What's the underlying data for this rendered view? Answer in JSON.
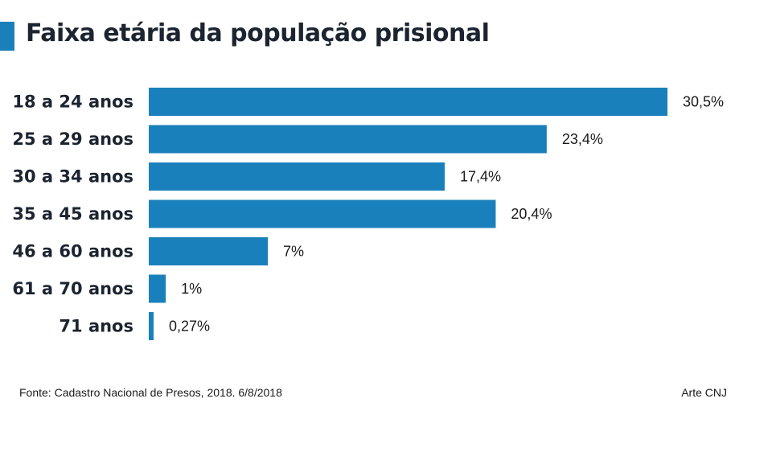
{
  "title": "Faixa etária da população prisional",
  "source": "Fonte: Cadastro Nacional de Presos, 2018. 6/8/2018",
  "credit": "Arte CNJ",
  "colors": {
    "bar": "#1a80bb",
    "title_marker": "#1a80bb",
    "text": "#1c2430"
  },
  "chart_data": {
    "type": "bar",
    "orientation": "horizontal",
    "title": "Faixa etária da população prisional",
    "categories": [
      "18 a 24 anos",
      "25 a 29 anos",
      "30 a 34 anos",
      "35 a 45 anos",
      "46 a 60 anos",
      "61 a 70 anos",
      "71 anos"
    ],
    "values": [
      30.5,
      23.4,
      17.4,
      20.4,
      7,
      1,
      0.27
    ],
    "value_labels": [
      "30,5%",
      "23,4%",
      "17,4%",
      "20,4%",
      "7%",
      "1%",
      "0,27%"
    ],
    "xlabel": "",
    "ylabel": "",
    "xlim": [
      0,
      30.5
    ],
    "grid": false,
    "legend": "none"
  }
}
